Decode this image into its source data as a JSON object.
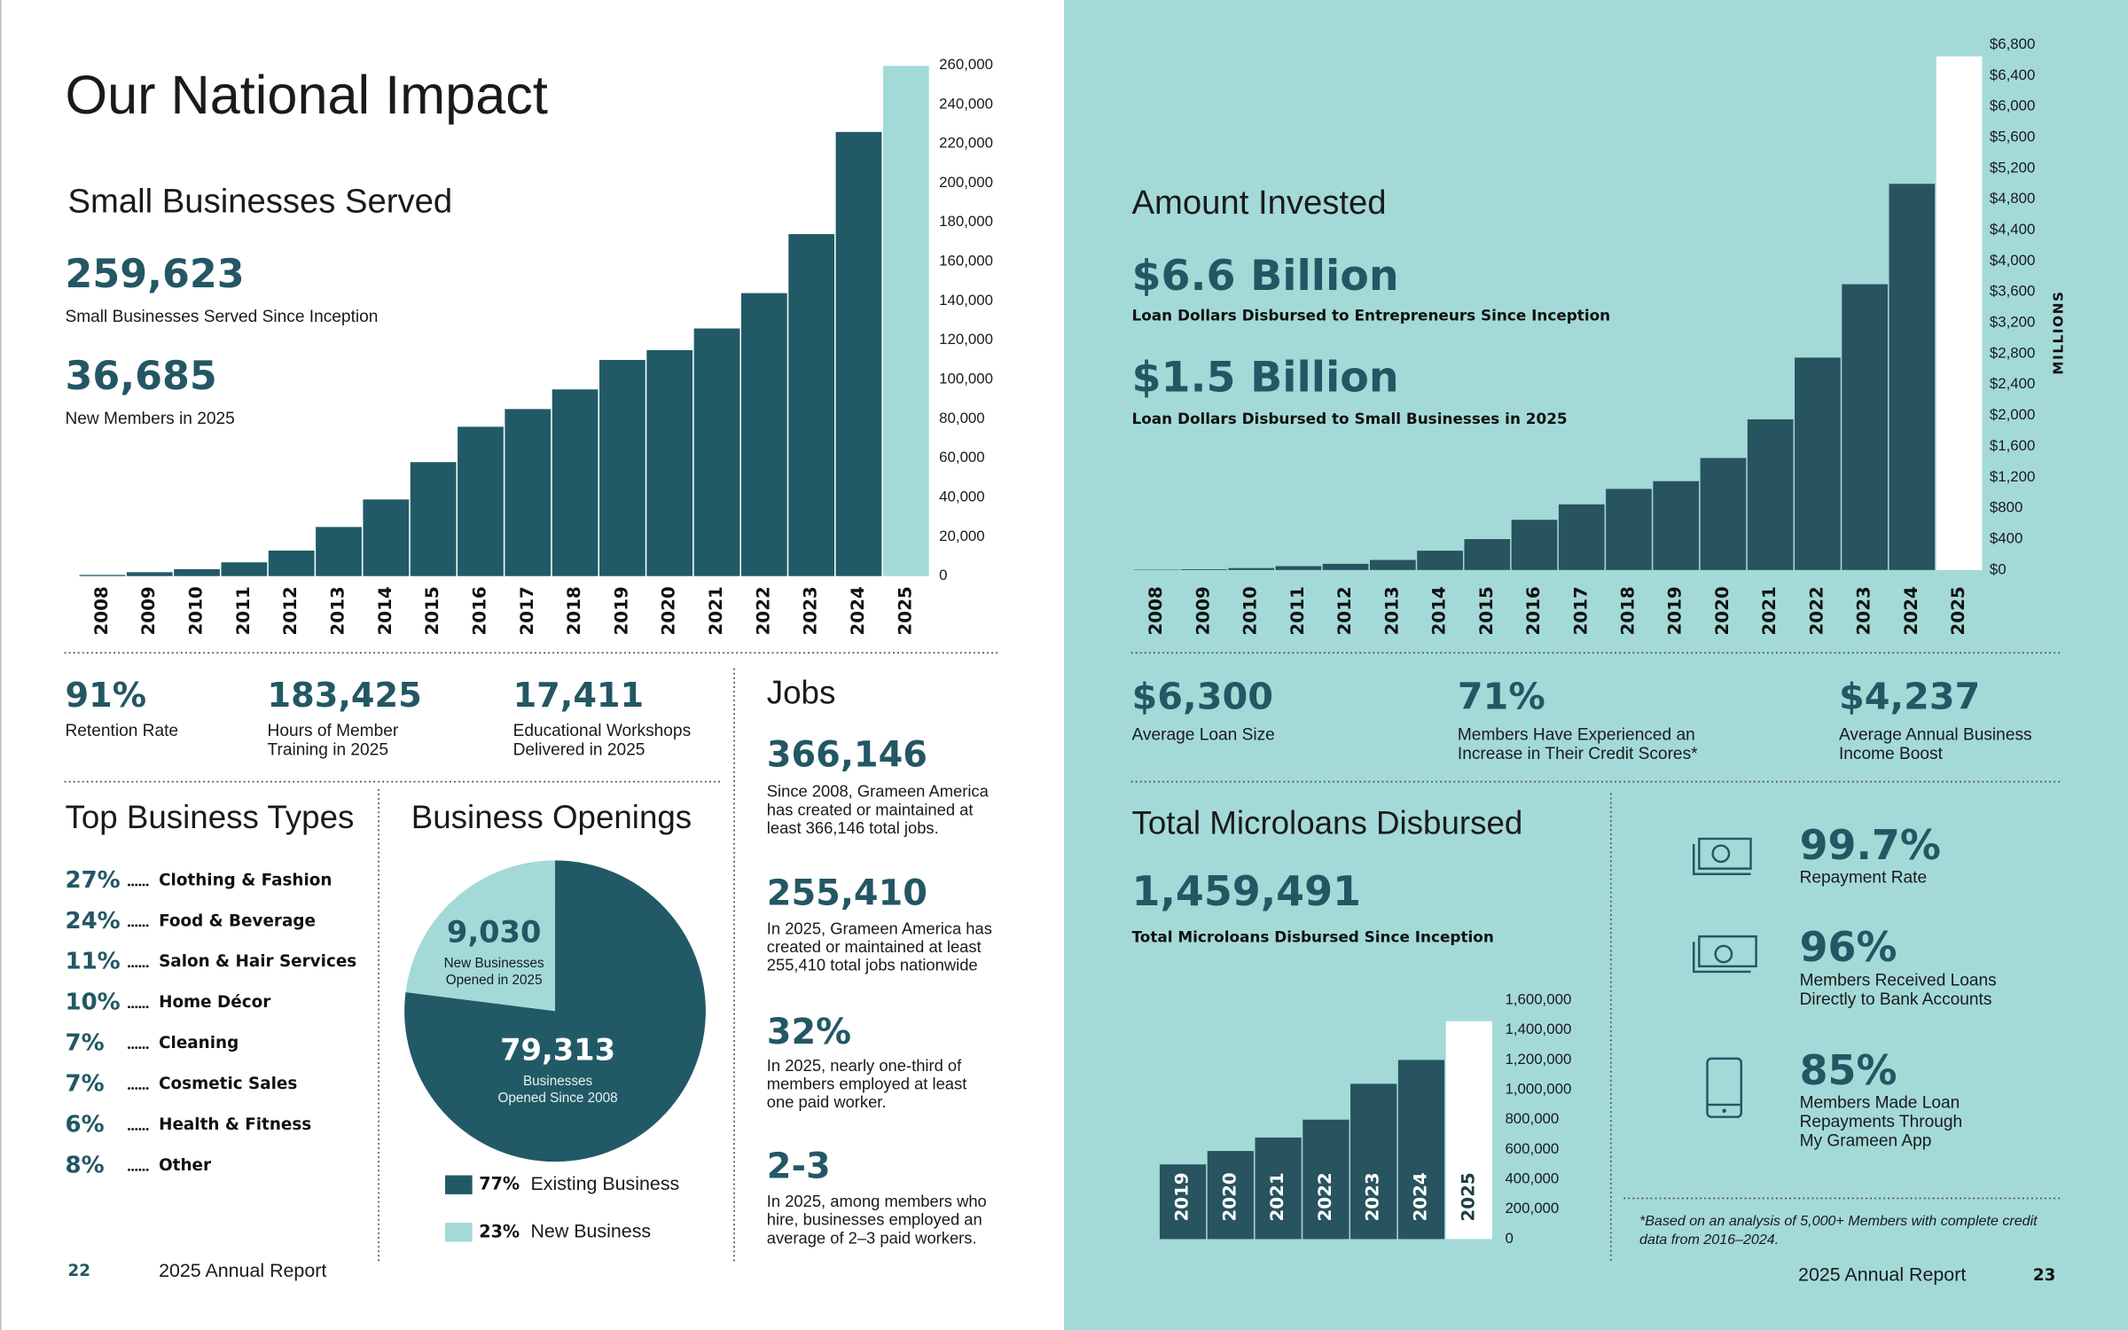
{
  "left_page": {
    "title": "Our National Impact",
    "stats": [
      {
        "value": "91%",
        "label": [
          "Retention Rate"
        ]
      },
      {
        "value": "183,425",
        "label": [
          "Hours of Member",
          "Training in 2025"
        ]
      },
      {
        "value": "17,411",
        "label": [
          "Educational Workshops",
          "Delivered in 2025"
        ]
      }
    ],
    "top_business_types": {
      "title": "Top Business Types",
      "items": [
        {
          "pct": "27%",
          "name": "Clothing & Fashion"
        },
        {
          "pct": "24%",
          "name": "Food & Beverage"
        },
        {
          "pct": "11%",
          "name": "Salon & Hair Services"
        },
        {
          "pct": "10%",
          "name": "Home Décor"
        },
        {
          "pct": "7%",
          "name": "Cleaning"
        },
        {
          "pct": "7%",
          "name": "Cosmetic Sales"
        },
        {
          "pct": "6%",
          "name": "Health & Fitness"
        },
        {
          "pct": "8%",
          "name": "Other"
        }
      ]
    },
    "jobs": {
      "title": "Jobs",
      "items": [
        {
          "value": "366,146",
          "text": [
            "Since 2008, Grameen America",
            "has created or maintained at",
            "least 366,146 total jobs."
          ]
        },
        {
          "value": "255,410",
          "text": [
            "In 2025, Grameen America has",
            "created or maintained at least",
            "255,410 total jobs nationwide"
          ]
        },
        {
          "value": "32%",
          "text": [
            "In 2025, nearly one-third of",
            "members employed at least",
            "one paid worker."
          ]
        },
        {
          "value": "2-3",
          "text": [
            "In 2025, among members who",
            "hire, businesses employed an",
            "average of 2–3 paid workers."
          ]
        }
      ]
    },
    "footer": {
      "page": "22",
      "text": "2025 Annual Report"
    }
  },
  "right_page": {
    "stats": [
      {
        "value": "$6,300",
        "label": [
          "Average Loan Size"
        ]
      },
      {
        "value": "71%",
        "label": [
          "Members Have Experienced an",
          "Increase in Their Credit Scores*"
        ]
      },
      {
        "value": "$4,237",
        "label": [
          "Average Annual Business",
          "Income Boost"
        ]
      }
    ],
    "kpis": [
      {
        "value": "99.7%",
        "label": [
          "Repayment Rate"
        ]
      },
      {
        "value": "96%",
        "label": [
          "Members Received Loans",
          "Directly to Bank Accounts"
        ]
      },
      {
        "value": "85%",
        "label": [
          "Members Made Loan",
          "Repayments Through",
          "My Grameen App"
        ]
      }
    ],
    "footnote": [
      "*Based on an analysis of 5,000+ Members with complete credit",
      "data from 2016–2024."
    ],
    "footer": {
      "text": "2025 Annual Report",
      "page": "23"
    }
  },
  "chart_data": [
    {
      "type": "bar",
      "title": "Small Businesses Served",
      "annotations": [
        {
          "value": "259,623",
          "label": "Small Businesses Served Since Inception"
        },
        {
          "value": "36,685",
          "label": "New Members in 2025"
        }
      ],
      "categories": [
        "2008",
        "2009",
        "2010",
        "2011",
        "2012",
        "2013",
        "2014",
        "2015",
        "2016",
        "2017",
        "2018",
        "2019",
        "2020",
        "2021",
        "2022",
        "2023",
        "2024",
        "2025"
      ],
      "values": [
        600,
        2000,
        3500,
        7000,
        13000,
        25000,
        39000,
        58000,
        76000,
        85000,
        95000,
        110000,
        115000,
        126000,
        144000,
        174000,
        226000,
        259623
      ],
      "colors": [
        "#215a66",
        "#215a66",
        "#215a66",
        "#215a66",
        "#215a66",
        "#215a66",
        "#215a66",
        "#215a66",
        "#215a66",
        "#215a66",
        "#215a66",
        "#215a66",
        "#215a66",
        "#215a66",
        "#215a66",
        "#215a66",
        "#215a66",
        "#a3dad8"
      ],
      "ylim": [
        0,
        260000
      ],
      "yticks": [
        0,
        {
          "value": 20000,
          "label": "20,000"
        },
        {
          "value": 40000,
          "label": "40,000"
        },
        {
          "value": 60000,
          "label": "60,000"
        },
        {
          "value": 80000,
          "label": "80,000"
        },
        {
          "value": 100000,
          "label": "100,000"
        },
        {
          "value": 120000,
          "label": "120,000"
        },
        {
          "value": 140000,
          "label": "140,000"
        },
        {
          "value": 160000,
          "label": "160,000"
        },
        {
          "value": 180000,
          "label": "180,000"
        },
        {
          "value": 200000,
          "label": "200,000"
        },
        {
          "value": 220000,
          "label": "220,000"
        },
        {
          "value": 240000,
          "label": "240,000"
        },
        {
          "value": 260000,
          "label": "260,000"
        }
      ],
      "grid": false
    },
    {
      "type": "bar",
      "title": "Amount Invested",
      "annotations": [
        {
          "value": "$6.6 Billion",
          "label": "Loan Dollars Disbursed to Entrepreneurs Since Inception"
        },
        {
          "value": "$1.5 Billion",
          "label": "Loan Dollars Disbursed to Small Businesses in 2025"
        }
      ],
      "y_label": "MILLIONS",
      "categories": [
        "2008",
        "2009",
        "2010",
        "2011",
        "2012",
        "2013",
        "2014",
        "2015",
        "2016",
        "2017",
        "2018",
        "2019",
        "2020",
        "2021",
        "2022",
        "2023",
        "2024",
        "2025"
      ],
      "values": [
        5,
        10,
        25,
        50,
        80,
        130,
        250,
        400,
        650,
        850,
        1050,
        1150,
        1450,
        1950,
        2750,
        3700,
        5000,
        6650
      ],
      "colors": [
        "#27545e",
        "#27545e",
        "#27545e",
        "#27545e",
        "#27545e",
        "#27545e",
        "#27545e",
        "#27545e",
        "#27545e",
        "#27545e",
        "#27545e",
        "#27545e",
        "#27545e",
        "#27545e",
        "#27545e",
        "#27545e",
        "#27545e",
        "#ffffff"
      ],
      "ylim": [
        0,
        6800
      ],
      "yticks": [
        {
          "value": 0,
          "label": "$0"
        },
        {
          "value": 400,
          "label": "$400"
        },
        {
          "value": 800,
          "label": "$800"
        },
        {
          "value": 1200,
          "label": "$1,200"
        },
        {
          "value": 1600,
          "label": "$1,600"
        },
        {
          "value": 2000,
          "label": "$2,000"
        },
        {
          "value": 2400,
          "label": "$2,400"
        },
        {
          "value": 2800,
          "label": "$2,800"
        },
        {
          "value": 3200,
          "label": "$3,200"
        },
        {
          "value": 3600,
          "label": "$3,600"
        },
        {
          "value": 4000,
          "label": "$4,000"
        },
        {
          "value": 4400,
          "label": "$4,400"
        },
        {
          "value": 4800,
          "label": "$4,800"
        },
        {
          "value": 5200,
          "label": "$5,200"
        },
        {
          "value": 5600,
          "label": "$5,600"
        },
        {
          "value": 6000,
          "label": "$6,000"
        },
        {
          "value": 6400,
          "label": "$6,400"
        },
        {
          "value": 6800,
          "label": "$6,800"
        }
      ],
      "grid": false
    },
    {
      "type": "bar",
      "title": "Total Microloans Disbursed",
      "annotations": [
        {
          "value": "1,459,491",
          "label": "Total Microloans Disbursed Since Inception"
        }
      ],
      "categories": [
        "2019",
        "2020",
        "2021",
        "2022",
        "2023",
        "2024",
        "2025"
      ],
      "values": [
        500000,
        590000,
        680000,
        800000,
        1040000,
        1200000,
        1459491
      ],
      "colors": [
        "#27545e",
        "#27545e",
        "#27545e",
        "#27545e",
        "#27545e",
        "#27545e",
        "#ffffff"
      ],
      "ylim": [
        0,
        1600000
      ],
      "yticks": [
        0,
        {
          "value": 200000,
          "label": "200,000"
        },
        {
          "value": 400000,
          "label": "400,000"
        },
        {
          "value": 600000,
          "label": "600,000"
        },
        {
          "value": 800000,
          "label": "800,000"
        },
        {
          "value": 1000000,
          "label": "1,000,000"
        },
        {
          "value": 1200000,
          "label": "1,200,000"
        },
        {
          "value": 1400000,
          "label": "1,400,000"
        },
        {
          "value": 1600000,
          "label": "1,600,000"
        }
      ],
      "grid": false
    },
    {
      "type": "pie",
      "title": "Business Openings",
      "categories": [
        "Existing Business",
        "New Business"
      ],
      "values": [
        77,
        23
      ],
      "value_labels": [
        "77%",
        "23%"
      ],
      "colors": [
        "#215a66",
        "#a3dad8"
      ],
      "slice_labels": [
        {
          "value": "79,313",
          "label": [
            "Businesses",
            "Opened Since 2008"
          ]
        },
        {
          "value": "9,030",
          "label": [
            "New Businesses",
            "Opened in 2025"
          ]
        }
      ]
    }
  ]
}
